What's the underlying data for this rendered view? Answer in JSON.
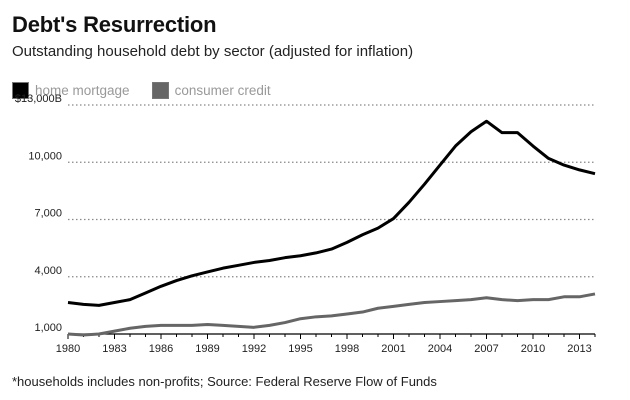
{
  "header": {
    "title": "Debt's Resurrection",
    "subtitle": "Outstanding household debt by sector (adjusted for inflation)"
  },
  "footnote": "*households includes non-profits; Source: Federal Reserve Flow of Funds",
  "chart_data": {
    "type": "line",
    "title": "Debt's Resurrection",
    "subtitle": "Outstanding household debt by sector (adjusted for inflation)",
    "xlabel": "",
    "ylabel": "",
    "x": [
      1980,
      1981,
      1982,
      1983,
      1984,
      1985,
      1986,
      1987,
      1988,
      1989,
      1990,
      1991,
      1992,
      1993,
      1994,
      1995,
      1996,
      1997,
      1998,
      1999,
      2000,
      2001,
      2002,
      2003,
      2004,
      2005,
      2006,
      2007,
      2008,
      2009,
      2010,
      2011,
      2012,
      2013,
      2014
    ],
    "xlim": [
      1980,
      2014
    ],
    "x_ticks": [
      1980,
      1983,
      1986,
      1989,
      1992,
      1995,
      1998,
      2001,
      2004,
      2007,
      2010,
      2013
    ],
    "x_tick_labels": [
      "1980",
      "1983",
      "1986",
      "1989",
      "1992",
      "1995",
      "1998",
      "2001",
      "2004",
      "2007",
      "2010",
      "2013"
    ],
    "ylim": [
      1000,
      13000
    ],
    "y_ticks": [
      1000,
      4000,
      7000,
      10000,
      13000
    ],
    "y_tick_labels": [
      "1,000",
      "4,000",
      "7,000",
      "10,000",
      "$13,000B"
    ],
    "grid": "horizontal-dotted",
    "legend_position": "top-left",
    "series": [
      {
        "name": "home mortgage",
        "color": "#000000",
        "values": [
          2650,
          2550,
          2500,
          2650,
          2800,
          3150,
          3500,
          3800,
          4050,
          4250,
          4450,
          4600,
          4750,
          4850,
          5000,
          5100,
          5250,
          5450,
          5800,
          6200,
          6550,
          7050,
          7900,
          8850,
          9850,
          10850,
          11600,
          12150,
          11550,
          11550,
          10850,
          10200,
          9850,
          9600,
          9400
        ]
      },
      {
        "name": "consumer credit",
        "color": "#666666",
        "values": [
          1000,
          950,
          1000,
          1150,
          1300,
          1400,
          1450,
          1450,
          1450,
          1500,
          1450,
          1400,
          1350,
          1450,
          1600,
          1800,
          1900,
          1950,
          2050,
          2150,
          2350,
          2450,
          2550,
          2650,
          2700,
          2750,
          2800,
          2900,
          2800,
          2750,
          2800,
          2800,
          2950,
          2950,
          3100
        ]
      }
    ]
  }
}
